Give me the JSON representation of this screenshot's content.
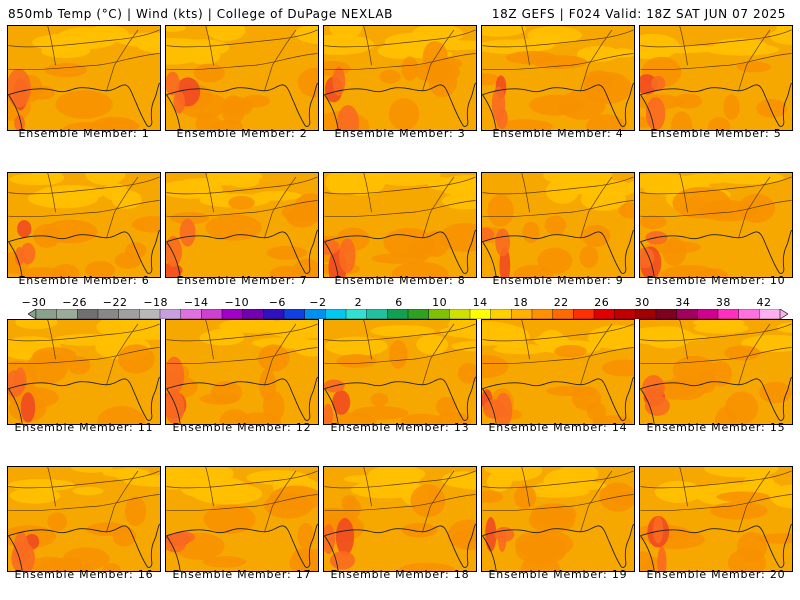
{
  "header": {
    "left": "850mb Temp (°C) | Wind (kts) | College of DuPage NEXLAB",
    "right": "18Z GEFS | F024 Valid: 18Z SAT JUN 07 2025"
  },
  "members": [
    {
      "label": "Ensemble Member: 1",
      "num": 1
    },
    {
      "label": "Ensemble Member: 2",
      "num": 2
    },
    {
      "label": "Ensemble Member: 3",
      "num": 3
    },
    {
      "label": "Ensemble Member: 4",
      "num": 4
    },
    {
      "label": "Ensemble Member: 5",
      "num": 5
    },
    {
      "label": "Ensemble Member: 6",
      "num": 6
    },
    {
      "label": "Ensemble Member: 7",
      "num": 7
    },
    {
      "label": "Ensemble Member: 8",
      "num": 8
    },
    {
      "label": "Ensemble Member: 9",
      "num": 9
    },
    {
      "label": "Ensemble Member: 10",
      "num": 10
    },
    {
      "label": "Ensemble Member: 11",
      "num": 11
    },
    {
      "label": "Ensemble Member: 12",
      "num": 12
    },
    {
      "label": "Ensemble Member: 13",
      "num": 13
    },
    {
      "label": "Ensemble Member: 14",
      "num": 14
    },
    {
      "label": "Ensemble Member: 15",
      "num": 15
    },
    {
      "label": "Ensemble Member: 16",
      "num": 16
    },
    {
      "label": "Ensemble Member: 17",
      "num": 17
    },
    {
      "label": "Ensemble Member: 18",
      "num": 18
    },
    {
      "label": "Ensemble Member: 19",
      "num": 19
    },
    {
      "label": "Ensemble Member: 20",
      "num": 20
    }
  ],
  "colorbar": {
    "labels": [
      "−30",
      "−26",
      "−22",
      "−18",
      "−14",
      "−10",
      "−6",
      "−2",
      "2",
      "6",
      "10",
      "14",
      "18",
      "22",
      "26",
      "30",
      "34",
      "38",
      "42"
    ],
    "colors": [
      "#8aa08a",
      "#9aab9a",
      "#707070",
      "#888888",
      "#a0a0a0",
      "#b8b8b8",
      "#c8a0e0",
      "#e070e0",
      "#d040d0",
      "#a000c8",
      "#7000b0",
      "#3010c0",
      "#1040e0",
      "#0090f0",
      "#00c8f0",
      "#30e0d0",
      "#20c0a0",
      "#10a050",
      "#30a020",
      "#80c000",
      "#d0e000",
      "#ffff00",
      "#ffd000",
      "#ffb000",
      "#ff9000",
      "#ff6a00",
      "#ff3000",
      "#e00000",
      "#c00000",
      "#a00000",
      "#800020",
      "#a00060",
      "#d00090",
      "#ff30c0",
      "#ff70e0",
      "#ffb0f0"
    ]
  },
  "palette": {
    "base": "#f7a800",
    "light": "#ffc000",
    "warm": "#f89000",
    "hot": "#f86a20",
    "hotter": "#f04a20"
  }
}
